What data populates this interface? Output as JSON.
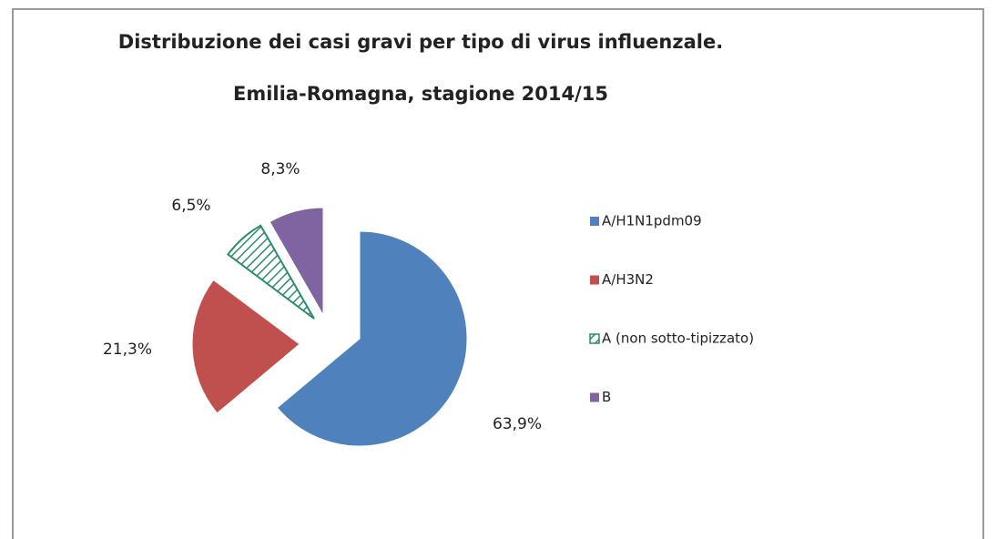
{
  "chart_data": {
    "type": "pie",
    "title": "Distribuzione dei casi gravi per tipo di virus influenzale.",
    "subtitle": "Emilia-Romagna,  stagione 2014/15",
    "categories": [
      "A/H1N1pdm09",
      "A/H3N2",
      "A (non sotto-tipizzato)",
      "B"
    ],
    "values": [
      63.9,
      21.3,
      6.5,
      8.3
    ],
    "value_labels": [
      "63,9%",
      "21,3%",
      "6,5%",
      "8,3%"
    ],
    "colors": [
      "#4f81bd",
      "#c0504d",
      "#2e8b6e",
      "#8064a2"
    ],
    "legend": "right"
  }
}
